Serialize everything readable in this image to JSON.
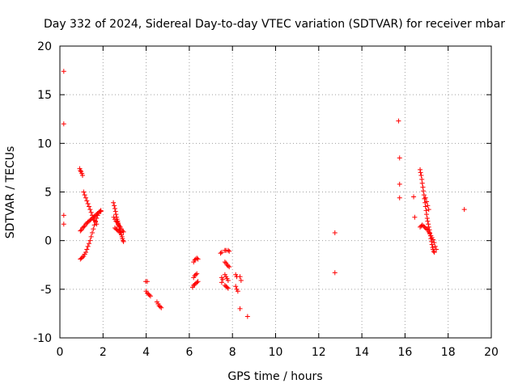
{
  "chart_data": {
    "type": "scatter",
    "title": "Day 332 of 2024, Sidereal Day-to-day VTEC variation (SDTVAR) for receiver mbar",
    "xlabel": "GPS time / hours",
    "ylabel": "SDTVAR / TECUs",
    "xlim": [
      0,
      20
    ],
    "ylim": [
      -10,
      20
    ],
    "xticks": [
      0,
      2,
      4,
      6,
      8,
      10,
      12,
      14,
      16,
      18,
      20
    ],
    "yticks": [
      -10,
      -5,
      0,
      5,
      10,
      15,
      20
    ],
    "grid": true,
    "marker": "+",
    "colors": {
      "points": "#ff0000",
      "grid": "#a0a0a0",
      "axes": "#000000"
    },
    "series": [
      {
        "name": "SDTVAR",
        "points": [
          [
            0.18,
            17.4
          ],
          [
            0.18,
            12.0
          ],
          [
            0.18,
            2.6
          ],
          [
            0.18,
            1.7
          ],
          [
            0.92,
            7.4
          ],
          [
            0.95,
            7.2
          ],
          [
            0.98,
            7.1
          ],
          [
            1.02,
            6.9
          ],
          [
            1.05,
            6.7
          ],
          [
            1.1,
            5.0
          ],
          [
            1.15,
            4.7
          ],
          [
            1.2,
            4.4
          ],
          [
            1.25,
            4.1
          ],
          [
            1.3,
            3.8
          ],
          [
            1.35,
            3.5
          ],
          [
            1.4,
            3.2
          ],
          [
            1.45,
            2.9
          ],
          [
            1.5,
            2.6
          ],
          [
            1.55,
            2.3
          ],
          [
            1.6,
            2.1
          ],
          [
            1.65,
            1.9
          ],
          [
            1.7,
            1.7
          ],
          [
            0.95,
            1.0
          ],
          [
            1.0,
            1.1
          ],
          [
            1.05,
            1.3
          ],
          [
            1.1,
            1.4
          ],
          [
            1.15,
            1.5
          ],
          [
            1.2,
            1.7
          ],
          [
            1.25,
            1.8
          ],
          [
            1.3,
            1.9
          ],
          [
            1.35,
            2.0
          ],
          [
            1.4,
            2.1
          ],
          [
            1.45,
            2.2
          ],
          [
            1.5,
            2.3
          ],
          [
            1.55,
            2.4
          ],
          [
            1.6,
            2.5
          ],
          [
            1.65,
            2.6
          ],
          [
            1.7,
            2.7
          ],
          [
            1.75,
            2.8
          ],
          [
            1.8,
            2.9
          ],
          [
            1.85,
            3.0
          ],
          [
            1.9,
            3.0
          ],
          [
            0.95,
            -1.9
          ],
          [
            1.0,
            -1.8
          ],
          [
            1.05,
            -1.7
          ],
          [
            1.1,
            -1.6
          ],
          [
            1.15,
            -1.4
          ],
          [
            1.2,
            -1.2
          ],
          [
            1.25,
            -0.9
          ],
          [
            1.3,
            -0.6
          ],
          [
            1.35,
            -0.3
          ],
          [
            1.4,
            0.0
          ],
          [
            1.45,
            0.4
          ],
          [
            1.5,
            0.8
          ],
          [
            1.55,
            1.2
          ],
          [
            1.6,
            1.6
          ],
          [
            1.65,
            2.0
          ],
          [
            1.7,
            2.3
          ],
          [
            1.75,
            2.6
          ],
          [
            1.8,
            2.8
          ],
          [
            1.85,
            3.0
          ],
          [
            1.9,
            3.1
          ],
          [
            2.48,
            3.9
          ],
          [
            2.52,
            3.6
          ],
          [
            2.55,
            3.3
          ],
          [
            2.58,
            3.0
          ],
          [
            2.6,
            2.7
          ],
          [
            2.63,
            2.4
          ],
          [
            2.65,
            2.2
          ],
          [
            2.68,
            2.0
          ],
          [
            2.7,
            1.8
          ],
          [
            2.72,
            1.6
          ],
          [
            2.75,
            1.4
          ],
          [
            2.78,
            1.2
          ],
          [
            2.8,
            1.0
          ],
          [
            2.83,
            0.8
          ],
          [
            2.85,
            0.6
          ],
          [
            2.88,
            0.4
          ],
          [
            2.9,
            0.2
          ],
          [
            2.93,
            0.0
          ],
          [
            2.95,
            -0.1
          ],
          [
            2.5,
            2.4
          ],
          [
            2.55,
            2.2
          ],
          [
            2.6,
            2.0
          ],
          [
            2.65,
            1.9
          ],
          [
            2.7,
            1.7
          ],
          [
            2.75,
            1.5
          ],
          [
            2.8,
            1.4
          ],
          [
            2.85,
            1.2
          ],
          [
            2.9,
            1.0
          ],
          [
            2.95,
            0.9
          ],
          [
            2.55,
            1.3
          ],
          [
            2.6,
            1.2
          ],
          [
            2.65,
            1.1
          ],
          [
            2.7,
            1.0
          ],
          [
            2.75,
            0.9
          ],
          [
            2.8,
            0.8
          ],
          [
            3.98,
            -4.2
          ],
          [
            4.05,
            -4.2
          ],
          [
            4.0,
            -5.2
          ],
          [
            4.05,
            -5.4
          ],
          [
            4.1,
            -5.5
          ],
          [
            4.15,
            -5.6
          ],
          [
            4.2,
            -5.7
          ],
          [
            4.5,
            -6.3
          ],
          [
            4.55,
            -6.5
          ],
          [
            4.6,
            -6.7
          ],
          [
            4.65,
            -6.8
          ],
          [
            4.7,
            -6.9
          ],
          [
            6.2,
            -2.2
          ],
          [
            6.25,
            -2.0
          ],
          [
            6.3,
            -1.9
          ],
          [
            6.35,
            -1.8
          ],
          [
            6.4,
            -1.9
          ],
          [
            6.2,
            -3.8
          ],
          [
            6.25,
            -3.6
          ],
          [
            6.3,
            -3.5
          ],
          [
            6.35,
            -3.4
          ],
          [
            6.15,
            -4.8
          ],
          [
            6.2,
            -4.6
          ],
          [
            6.25,
            -4.5
          ],
          [
            6.3,
            -4.4
          ],
          [
            6.35,
            -4.3
          ],
          [
            6.4,
            -4.2
          ],
          [
            7.45,
            -1.3
          ],
          [
            7.5,
            -1.2
          ],
          [
            7.5,
            -3.8
          ],
          [
            7.55,
            -4.0
          ],
          [
            7.5,
            -4.3
          ],
          [
            7.65,
            -1.0
          ],
          [
            7.7,
            -1.0
          ],
          [
            7.8,
            -1.0
          ],
          [
            7.85,
            -1.1
          ],
          [
            7.65,
            -2.2
          ],
          [
            7.7,
            -2.3
          ],
          [
            7.75,
            -2.5
          ],
          [
            7.8,
            -2.6
          ],
          [
            7.85,
            -2.7
          ],
          [
            7.65,
            -3.5
          ],
          [
            7.7,
            -3.7
          ],
          [
            7.75,
            -3.9
          ],
          [
            7.8,
            -4.1
          ],
          [
            7.65,
            -4.6
          ],
          [
            7.7,
            -4.7
          ],
          [
            7.75,
            -4.8
          ],
          [
            7.8,
            -4.9
          ],
          [
            8.15,
            -3.5
          ],
          [
            8.2,
            -3.7
          ],
          [
            8.15,
            -4.7
          ],
          [
            8.2,
            -5.0
          ],
          [
            8.25,
            -5.2
          ],
          [
            8.35,
            -3.7
          ],
          [
            8.4,
            -4.1
          ],
          [
            8.35,
            -7.0
          ],
          [
            8.7,
            -7.8
          ],
          [
            12.75,
            0.8
          ],
          [
            12.75,
            -3.3
          ],
          [
            15.7,
            12.3
          ],
          [
            15.75,
            8.5
          ],
          [
            15.75,
            5.8
          ],
          [
            15.75,
            4.4
          ],
          [
            16.4,
            4.5
          ],
          [
            16.45,
            2.4
          ],
          [
            16.7,
            7.3
          ],
          [
            16.72,
            7.0
          ],
          [
            16.75,
            6.7
          ],
          [
            16.78,
            6.3
          ],
          [
            16.8,
            5.9
          ],
          [
            16.83,
            5.5
          ],
          [
            16.85,
            5.1
          ],
          [
            16.88,
            4.7
          ],
          [
            16.9,
            4.3
          ],
          [
            16.93,
            3.9
          ],
          [
            16.95,
            3.5
          ],
          [
            16.98,
            3.1
          ],
          [
            17.0,
            2.7
          ],
          [
            17.03,
            2.3
          ],
          [
            17.05,
            2.0
          ],
          [
            17.08,
            1.7
          ],
          [
            17.1,
            1.4
          ],
          [
            17.13,
            1.1
          ],
          [
            17.15,
            0.8
          ],
          [
            17.18,
            0.5
          ],
          [
            17.2,
            0.2
          ],
          [
            17.23,
            -0.1
          ],
          [
            17.25,
            -0.4
          ],
          [
            17.28,
            -0.7
          ],
          [
            17.3,
            -0.9
          ],
          [
            17.33,
            -1.1
          ],
          [
            17.36,
            -1.2
          ],
          [
            16.7,
            1.4
          ],
          [
            16.75,
            1.5
          ],
          [
            16.8,
            1.6
          ],
          [
            16.85,
            1.5
          ],
          [
            16.9,
            1.4
          ],
          [
            16.95,
            1.3
          ],
          [
            17.0,
            1.2
          ],
          [
            17.05,
            1.1
          ],
          [
            17.1,
            0.9
          ],
          [
            17.15,
            0.7
          ],
          [
            17.2,
            0.5
          ],
          [
            17.25,
            0.3
          ],
          [
            17.3,
            0.1
          ],
          [
            17.35,
            -0.2
          ],
          [
            17.4,
            -0.6
          ],
          [
            17.45,
            -0.9
          ],
          [
            16.95,
            4.4
          ],
          [
            17.0,
            4.0
          ],
          [
            17.05,
            3.6
          ],
          [
            17.1,
            3.2
          ],
          [
            18.75,
            3.2
          ]
        ]
      }
    ]
  }
}
